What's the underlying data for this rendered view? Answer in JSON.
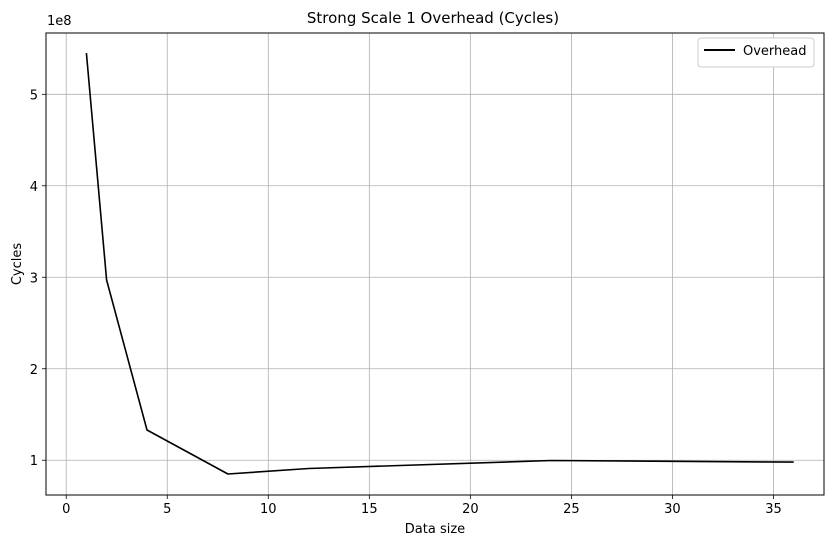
{
  "chart_data": {
    "type": "line",
    "title": "Strong Scale 1 Overhead (Cycles)",
    "xlabel": "Data size",
    "ylabel": "Cycles",
    "y_scale_label": "1e8",
    "xlim": [
      -1,
      37.5
    ],
    "ylim": [
      62000000.0,
      567000000.0
    ],
    "xticks": [
      0,
      5,
      10,
      15,
      20,
      25,
      30,
      35
    ],
    "yticks": [
      100000000.0,
      200000000.0,
      300000000.0,
      400000000.0,
      500000000.0
    ],
    "ytick_labels": [
      "1",
      "2",
      "3",
      "4",
      "5"
    ],
    "grid": true,
    "legend_position": "top-right",
    "series": [
      {
        "name": "Overhead",
        "color": "#000000",
        "x": [
          1,
          2,
          4,
          8,
          12,
          24,
          36
        ],
        "y": [
          545000000,
          297000000,
          133000000,
          85000000,
          91000000,
          99700000,
          98000000
        ]
      }
    ]
  }
}
